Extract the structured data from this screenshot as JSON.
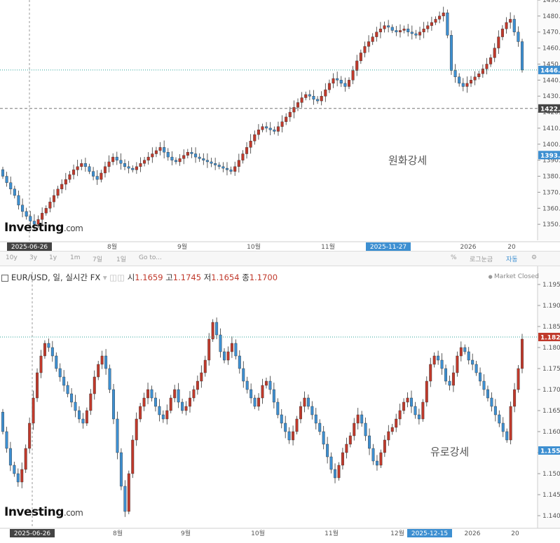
{
  "chart_data": [
    {
      "type": "candlestick",
      "title": "",
      "annotation": "원화강세",
      "logo": {
        "brand": "Investing",
        "suffix": ".com"
      },
      "ylim": [
        1340,
        1490
      ],
      "y_ticks": [
        "1350.0",
        "1360.0",
        "1370.0",
        "1380.0",
        "1390.0",
        "1400.0",
        "1410.0",
        "1420.0",
        "1430.0",
        "1440.0",
        "1450.0",
        "1460.0",
        "1470.0",
        "1480.0",
        "1490.0"
      ],
      "price_tags": [
        {
          "label": "1446.3",
          "value": 1446.3,
          "color": "#3d8fd1",
          "style": "dotted-teal"
        },
        {
          "label": "1422.",
          "value": 1422.3,
          "color": "#444444",
          "style": "dashed-gray"
        },
        {
          "label": "1393.",
          "value": 1393.2,
          "color": "#3d8fd1",
          "style": "none"
        }
      ],
      "x_labels": [
        {
          "label": "2025-06-26",
          "highlight": "dark"
        },
        {
          "label": "8월"
        },
        {
          "label": "9월"
        },
        {
          "label": "10월"
        },
        {
          "label": "11월"
        },
        {
          "label": "2025-11-27",
          "highlight": "blue"
        },
        {
          "label": "2026"
        },
        {
          "label": "20"
        }
      ],
      "closes": [
        1380,
        1376,
        1372,
        1368,
        1362,
        1358,
        1355,
        1352,
        1350,
        1353,
        1357,
        1360,
        1364,
        1368,
        1372,
        1375,
        1378,
        1381,
        1384,
        1386,
        1388,
        1386,
        1383,
        1380,
        1378,
        1382,
        1386,
        1389,
        1392,
        1390,
        1388,
        1386,
        1385,
        1384,
        1386,
        1388,
        1390,
        1392,
        1394,
        1396,
        1398,
        1395,
        1392,
        1390,
        1389,
        1391,
        1393,
        1395,
        1394,
        1392,
        1391,
        1390,
        1389,
        1388,
        1387,
        1386,
        1385,
        1384,
        1383,
        1386,
        1390,
        1394,
        1398,
        1402,
        1406,
        1409,
        1411,
        1410,
        1409,
        1408,
        1411,
        1414,
        1417,
        1420,
        1423,
        1426,
        1429,
        1431,
        1430,
        1428,
        1427,
        1430,
        1434,
        1438,
        1441,
        1440,
        1438,
        1436,
        1440,
        1446,
        1452,
        1457,
        1461,
        1464,
        1467,
        1470,
        1472,
        1474,
        1473,
        1471,
        1470,
        1471,
        1472,
        1470,
        1469,
        1468,
        1470,
        1472,
        1474,
        1476,
        1478,
        1480,
        1482,
        1468,
        1446,
        1442,
        1438,
        1436,
        1438,
        1440,
        1442,
        1444,
        1447,
        1450,
        1454,
        1460,
        1467,
        1472,
        1476,
        1478,
        1470,
        1464,
        1446.3
      ]
    },
    {
      "type": "candlestick",
      "title": "EUR/USD, 일, 실시간 FX",
      "header": {
        "open_label": "시",
        "open": "1.1659",
        "high_label": "고",
        "high": "1.1745",
        "low_label": "저",
        "low": "1.1654",
        "close_label": "종",
        "close": "1.1700"
      },
      "status": "Market Closed",
      "annotation": "유로강세",
      "logo": {
        "brand": "Investing",
        "suffix": ".com"
      },
      "ylim": [
        1.137,
        1.198
      ],
      "y_ticks": [
        "1.140",
        "1.145",
        "1.150",
        "1.155",
        "1.160",
        "1.165",
        "1.170",
        "1.175",
        "1.180",
        "1.185",
        "1.190",
        "1.195"
      ],
      "price_tags": [
        {
          "label": "1.182",
          "value": 1.1825,
          "color": "#c0392b",
          "style": "dotted-teal"
        },
        {
          "label": "1.155",
          "value": 1.1555,
          "color": "#3d8fd1",
          "style": "none"
        }
      ],
      "x_labels": [
        {
          "label": "2025-06-26",
          "highlight": "dark"
        },
        {
          "label": "8월"
        },
        {
          "label": "9월"
        },
        {
          "label": "10월"
        },
        {
          "label": "11월"
        },
        {
          "label": "12월"
        },
        {
          "label": "2025-12-15",
          "highlight": "blue"
        },
        {
          "label": "2026"
        },
        {
          "label": "20"
        }
      ],
      "closes": [
        1.16,
        1.156,
        1.152,
        1.15,
        1.148,
        1.151,
        1.156,
        1.162,
        1.168,
        1.174,
        1.178,
        1.181,
        1.18,
        1.178,
        1.175,
        1.173,
        1.171,
        1.169,
        1.167,
        1.165,
        1.163,
        1.162,
        1.165,
        1.169,
        1.173,
        1.176,
        1.178,
        1.175,
        1.17,
        1.163,
        1.155,
        1.147,
        1.141,
        1.15,
        1.158,
        1.163,
        1.166,
        1.168,
        1.17,
        1.168,
        1.166,
        1.164,
        1.163,
        1.165,
        1.168,
        1.17,
        1.167,
        1.165,
        1.166,
        1.168,
        1.17,
        1.172,
        1.174,
        1.177,
        1.182,
        1.186,
        1.183,
        1.179,
        1.177,
        1.179,
        1.181,
        1.178,
        1.175,
        1.172,
        1.17,
        1.168,
        1.166,
        1.168,
        1.171,
        1.172,
        1.17,
        1.167,
        1.164,
        1.162,
        1.16,
        1.158,
        1.16,
        1.163,
        1.166,
        1.168,
        1.166,
        1.164,
        1.162,
        1.16,
        1.157,
        1.154,
        1.151,
        1.149,
        1.152,
        1.155,
        1.157,
        1.159,
        1.162,
        1.164,
        1.162,
        1.159,
        1.156,
        1.153,
        1.152,
        1.155,
        1.158,
        1.16,
        1.161,
        1.163,
        1.165,
        1.167,
        1.168,
        1.166,
        1.164,
        1.163,
        1.167,
        1.172,
        1.176,
        1.178,
        1.177,
        1.175,
        1.172,
        1.171,
        1.174,
        1.178,
        1.18,
        1.179,
        1.177,
        1.176,
        1.174,
        1.172,
        1.17,
        1.168,
        1.166,
        1.164,
        1.162,
        1.16,
        1.158,
        1.166,
        1.17,
        1.175,
        1.182
      ]
    }
  ],
  "toolbar": {
    "ranges": [
      "10y",
      "3y",
      "1y",
      "1m",
      "7일",
      "1일",
      "Go to..."
    ],
    "percent": "%",
    "log": "로그눈금",
    "auto": "자동"
  }
}
